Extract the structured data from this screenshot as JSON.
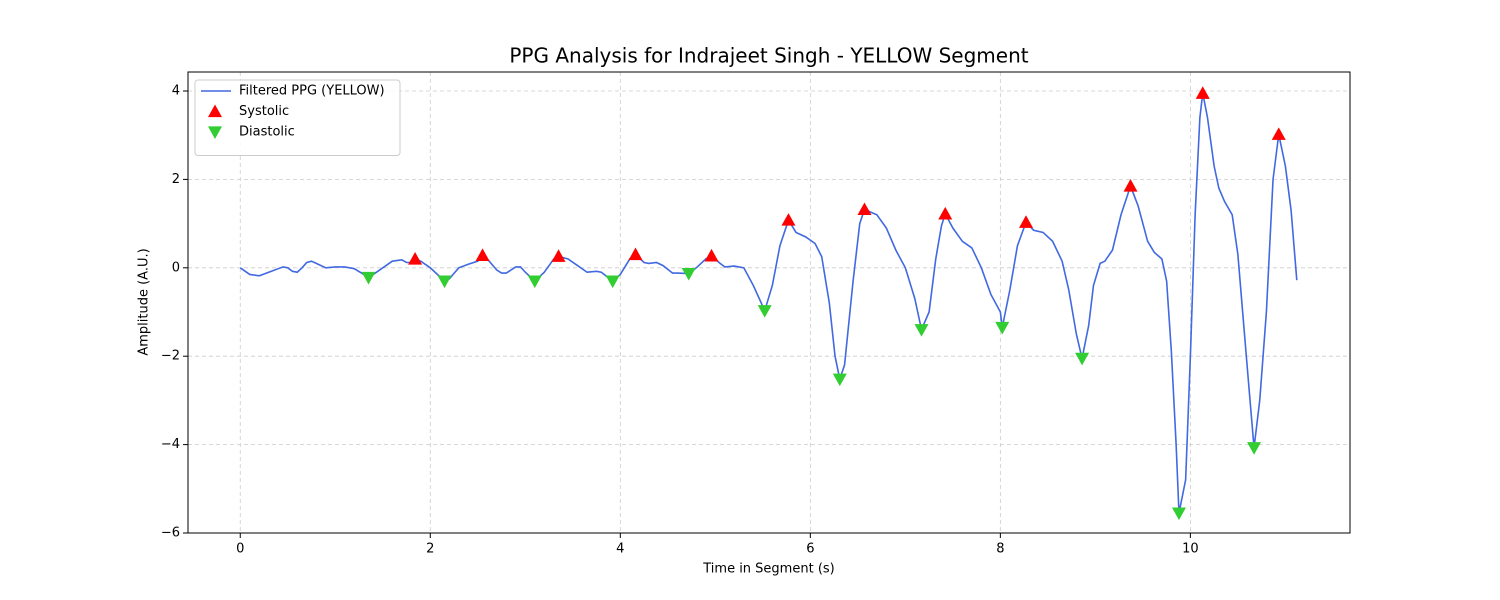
{
  "chart_data": {
    "type": "line",
    "title": "PPG Analysis for Indrajeet Singh - YELLOW Segment",
    "x_label": "Time in Segment (s)",
    "y_label": "Amplitude (A.U.)",
    "xlim": [
      -0.55,
      11.68
    ],
    "ylim": [
      -6,
      4.43
    ],
    "xticks": [
      0,
      2,
      4,
      6,
      8,
      10
    ],
    "yticks": [
      {
        "value": -6,
        "label": "−6"
      },
      {
        "value": -4,
        "label": "−4"
      },
      {
        "value": -2,
        "label": "−2"
      },
      0,
      2,
      4
    ],
    "grid": true,
    "legend": "upper left",
    "series": [
      {
        "name": "Filtered PPG (YELLOW)",
        "type": "line",
        "color": "#4169e1",
        "x": [
          0,
          0.1,
          0.2,
          0.3,
          0.4,
          0.45,
          0.5,
          0.55,
          0.6,
          0.65,
          0.7,
          0.75,
          0.8,
          0.9,
          1.0,
          1.1,
          1.2,
          1.3,
          1.35,
          1.4,
          1.5,
          1.6,
          1.7,
          1.75,
          1.8,
          1.84,
          1.9,
          2.0,
          2.1,
          2.15,
          2.2,
          2.3,
          2.4,
          2.5,
          2.55,
          2.6,
          2.7,
          2.75,
          2.8,
          2.85,
          2.9,
          2.95,
          3.0,
          3.1,
          3.2,
          3.3,
          3.35,
          3.45,
          3.55,
          3.65,
          3.75,
          3.8,
          3.92,
          4.0,
          4.1,
          4.16,
          4.25,
          4.3,
          4.38,
          4.45,
          4.55,
          4.6,
          4.72,
          4.8,
          4.9,
          4.96,
          5.05,
          5.1,
          5.2,
          5.3,
          5.4,
          5.52,
          5.6,
          5.68,
          5.77,
          5.85,
          5.95,
          6.05,
          6.12,
          6.2,
          6.26,
          6.31,
          6.36,
          6.45,
          6.52,
          6.57,
          6.7,
          6.8,
          6.9,
          7.0,
          7.1,
          7.17,
          7.25,
          7.32,
          7.38,
          7.42,
          7.5,
          7.6,
          7.7,
          7.8,
          7.9,
          8.0,
          8.02,
          8.1,
          8.18,
          8.27,
          8.35,
          8.45,
          8.55,
          8.65,
          8.72,
          8.8,
          8.86,
          8.93,
          8.98,
          9.05,
          9.1,
          9.18,
          9.27,
          9.37,
          9.45,
          9.55,
          9.62,
          9.7,
          9.75,
          9.8,
          9.85,
          9.88,
          9.95,
          10.0,
          10.05,
          10.1,
          10.13,
          10.18,
          10.25,
          10.3,
          10.36,
          10.44,
          10.5,
          10.55,
          10.62,
          10.67,
          10.73,
          10.8,
          10.87,
          10.93,
          11.0,
          11.06,
          11.12
        ],
        "values": [
          0,
          -0.15,
          -0.18,
          -0.1,
          -0.02,
          0.02,
          0,
          -0.08,
          -0.1,
          0,
          0.12,
          0.15,
          0.1,
          0,
          0.02,
          0.02,
          -0.02,
          -0.15,
          -0.22,
          -0.15,
          0,
          0.15,
          0.18,
          0.12,
          0.12,
          0.2,
          0.15,
          0,
          -0.2,
          -0.3,
          -0.25,
          0,
          0.08,
          0.15,
          0.28,
          0.2,
          -0.05,
          -0.12,
          -0.12,
          -0.05,
          0.02,
          0.02,
          -0.1,
          -0.3,
          -0.1,
          0.2,
          0.26,
          0.2,
          0.05,
          -0.1,
          -0.08,
          -0.1,
          -0.3,
          -0.15,
          0.2,
          0.3,
          0.12,
          0.1,
          0.12,
          0.05,
          -0.12,
          -0.12,
          -0.13,
          0,
          0.2,
          0.27,
          0.1,
          0.02,
          0.04,
          0,
          -0.4,
          -0.97,
          -0.4,
          0.5,
          1.08,
          0.8,
          0.7,
          0.55,
          0.25,
          -0.8,
          -2,
          -2.52,
          -2.2,
          -0.3,
          1,
          1.32,
          1.2,
          0.9,
          0.4,
          0,
          -0.7,
          -1.4,
          -1,
          0.2,
          0.95,
          1.22,
          0.9,
          0.6,
          0.45,
          0,
          -0.6,
          -1,
          -1.35,
          -0.5,
          0.5,
          1.03,
          0.85,
          0.8,
          0.6,
          0.15,
          -0.5,
          -1.5,
          -2.05,
          -1.3,
          -0.4,
          0.1,
          0.15,
          0.4,
          1.2,
          1.85,
          1.4,
          0.6,
          0.35,
          0.2,
          -0.3,
          -1.9,
          -4,
          -5.55,
          -4.8,
          -2,
          1.2,
          3.4,
          3.95,
          3.4,
          2.3,
          1.8,
          1.5,
          1.2,
          0.3,
          -1,
          -2.8,
          -4.07,
          -3,
          -1,
          2,
          3.02,
          2.3,
          1.3,
          -0.28
        ]
      },
      {
        "name": "Systolic",
        "type": "scatter",
        "marker": "triangle-up",
        "color": "#ff0000",
        "x": [
          1.84,
          2.55,
          3.35,
          4.16,
          4.96,
          5.77,
          6.57,
          7.42,
          8.27,
          9.37,
          10.13,
          10.93
        ],
        "values": [
          0.2,
          0.28,
          0.26,
          0.3,
          0.27,
          1.08,
          1.32,
          1.22,
          1.03,
          1.85,
          3.95,
          3.02
        ]
      },
      {
        "name": "Diastolic",
        "type": "scatter",
        "marker": "triangle-down",
        "color": "#32cd32",
        "x": [
          1.35,
          2.15,
          3.1,
          3.92,
          4.72,
          5.52,
          6.31,
          7.17,
          8.02,
          8.86,
          9.88,
          10.67
        ],
        "values": [
          -0.22,
          -0.3,
          -0.3,
          -0.3,
          -0.13,
          -0.97,
          -2.52,
          -1.4,
          -1.35,
          -2.05,
          -5.55,
          -4.07
        ]
      }
    ]
  }
}
